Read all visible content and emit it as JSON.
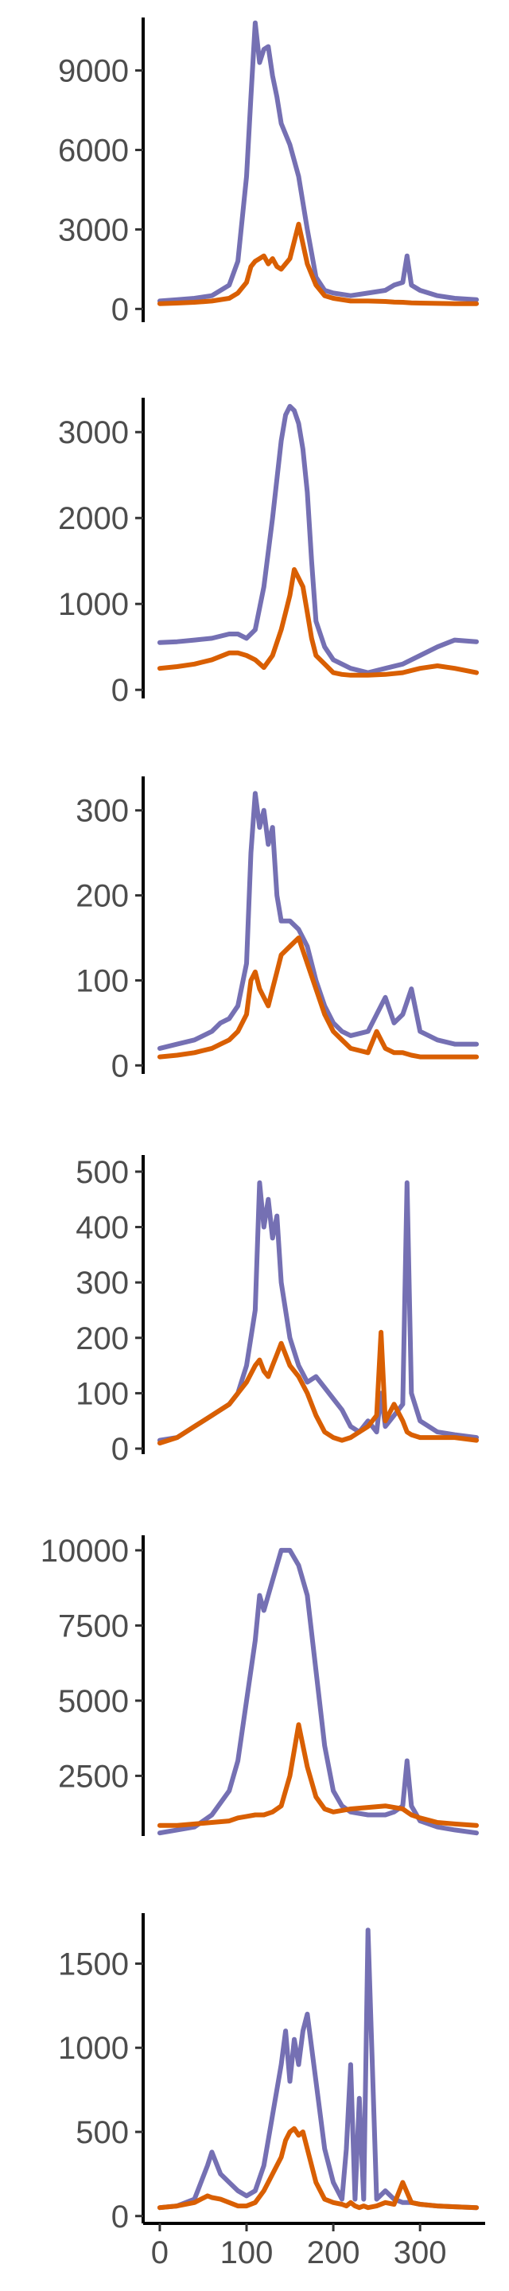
{
  "chart_data": [
    {
      "type": "line",
      "xlim": [
        -10,
        375
      ],
      "ylim": [
        -500,
        11000
      ],
      "yticks": [
        0,
        3000,
        6000,
        9000
      ],
      "x": [
        0,
        20,
        40,
        60,
        80,
        90,
        100,
        105,
        110,
        115,
        120,
        125,
        130,
        135,
        140,
        150,
        160,
        170,
        180,
        190,
        200,
        220,
        240,
        260,
        270,
        280,
        285,
        290,
        300,
        320,
        340,
        365
      ],
      "series": [
        {
          "color": "#7570b3",
          "values": [
            300,
            350,
            400,
            500,
            900,
            1800,
            5000,
            8000,
            10800,
            9300,
            9800,
            9900,
            8800,
            8000,
            7000,
            6200,
            5000,
            3000,
            1200,
            700,
            600,
            500,
            600,
            700,
            900,
            1000,
            2000,
            900,
            700,
            500,
            400,
            350
          ]
        },
        {
          "color": "#d95f02",
          "values": [
            200,
            220,
            250,
            300,
            400,
            600,
            1000,
            1600,
            1800,
            1900,
            2000,
            1700,
            1900,
            1600,
            1500,
            1900,
            3200,
            1700,
            900,
            500,
            400,
            300,
            300,
            280,
            260,
            250,
            240,
            230,
            220,
            210,
            200,
            200
          ]
        }
      ]
    },
    {
      "type": "line",
      "xlim": [
        -10,
        375
      ],
      "ylim": [
        -100,
        3400
      ],
      "yticks": [
        0,
        1000,
        2000,
        3000
      ],
      "x": [
        0,
        20,
        40,
        60,
        80,
        90,
        100,
        110,
        120,
        130,
        140,
        145,
        150,
        155,
        160,
        165,
        170,
        175,
        180,
        190,
        200,
        210,
        220,
        240,
        260,
        280,
        300,
        320,
        340,
        365
      ],
      "series": [
        {
          "color": "#7570b3",
          "values": [
            550,
            560,
            580,
            600,
            650,
            650,
            600,
            700,
            1200,
            2000,
            2900,
            3200,
            3300,
            3250,
            3100,
            2800,
            2300,
            1500,
            800,
            500,
            350,
            300,
            250,
            200,
            250,
            300,
            400,
            500,
            580,
            560
          ]
        },
        {
          "color": "#d95f02",
          "values": [
            250,
            270,
            300,
            350,
            430,
            430,
            400,
            350,
            260,
            400,
            700,
            900,
            1100,
            1400,
            1300,
            1200,
            900,
            600,
            400,
            300,
            200,
            180,
            170,
            170,
            180,
            200,
            250,
            280,
            250,
            200
          ]
        }
      ]
    },
    {
      "type": "line",
      "xlim": [
        -10,
        375
      ],
      "ylim": [
        -10,
        340
      ],
      "yticks": [
        0,
        100,
        200,
        300
      ],
      "x": [
        0,
        20,
        40,
        60,
        70,
        80,
        90,
        100,
        105,
        110,
        115,
        120,
        125,
        130,
        135,
        140,
        150,
        160,
        170,
        180,
        190,
        200,
        210,
        220,
        240,
        250,
        260,
        270,
        280,
        290,
        300,
        320,
        340,
        365
      ],
      "series": [
        {
          "color": "#7570b3",
          "values": [
            20,
            25,
            30,
            40,
            50,
            55,
            70,
            120,
            250,
            320,
            280,
            300,
            260,
            280,
            200,
            170,
            170,
            160,
            140,
            100,
            70,
            50,
            40,
            35,
            40,
            60,
            80,
            50,
            60,
            90,
            40,
            30,
            25,
            25
          ]
        },
        {
          "color": "#d95f02",
          "values": [
            10,
            12,
            15,
            20,
            25,
            30,
            40,
            60,
            100,
            110,
            90,
            80,
            70,
            90,
            110,
            130,
            140,
            150,
            120,
            90,
            60,
            40,
            30,
            20,
            15,
            40,
            20,
            15,
            15,
            12,
            10,
            10,
            10,
            10
          ]
        }
      ]
    },
    {
      "type": "line",
      "xlim": [
        -10,
        375
      ],
      "ylim": [
        -10,
        530
      ],
      "yticks": [
        0,
        100,
        200,
        300,
        400,
        500
      ],
      "x": [
        0,
        20,
        40,
        60,
        80,
        90,
        100,
        110,
        115,
        120,
        125,
        130,
        135,
        140,
        150,
        160,
        170,
        180,
        190,
        200,
        210,
        220,
        230,
        240,
        250,
        255,
        260,
        270,
        280,
        285,
        290,
        300,
        320,
        340,
        365
      ],
      "series": [
        {
          "color": "#7570b3",
          "values": [
            15,
            20,
            40,
            60,
            80,
            100,
            150,
            250,
            480,
            400,
            450,
            380,
            420,
            300,
            200,
            150,
            120,
            130,
            110,
            90,
            70,
            40,
            30,
            50,
            30,
            100,
            40,
            60,
            80,
            480,
            100,
            50,
            30,
            25,
            20
          ]
        },
        {
          "color": "#d95f02",
          "values": [
            10,
            20,
            40,
            60,
            80,
            100,
            120,
            150,
            160,
            140,
            130,
            150,
            170,
            190,
            150,
            130,
            100,
            60,
            30,
            20,
            15,
            20,
            30,
            40,
            60,
            210,
            50,
            80,
            50,
            30,
            25,
            20,
            20,
            20,
            15
          ]
        }
      ]
    },
    {
      "type": "line",
      "xlim": [
        -10,
        375
      ],
      "ylim": [
        500,
        10500
      ],
      "yticks": [
        2500,
        5000,
        7500,
        10000
      ],
      "x": [
        0,
        20,
        40,
        60,
        80,
        90,
        100,
        110,
        115,
        120,
        130,
        140,
        150,
        160,
        170,
        180,
        190,
        200,
        210,
        220,
        240,
        260,
        270,
        280,
        285,
        290,
        300,
        320,
        340,
        365
      ],
      "series": [
        {
          "color": "#7570b3",
          "values": [
            600,
            700,
            800,
            1200,
            2000,
            3000,
            5000,
            7000,
            8500,
            8000,
            9000,
            10000,
            10000,
            9500,
            8500,
            6000,
            3500,
            2000,
            1500,
            1300,
            1200,
            1200,
            1300,
            1500,
            3000,
            1500,
            1000,
            800,
            700,
            600
          ]
        },
        {
          "color": "#d95f02",
          "values": [
            850,
            850,
            900,
            950,
            1000,
            1100,
            1150,
            1200,
            1200,
            1200,
            1300,
            1500,
            2500,
            4200,
            2800,
            1800,
            1400,
            1300,
            1350,
            1400,
            1450,
            1500,
            1450,
            1400,
            1300,
            1200,
            1100,
            950,
            900,
            850
          ]
        }
      ]
    },
    {
      "type": "line",
      "xlim": [
        -10,
        375
      ],
      "ylim": [
        -20,
        1800
      ],
      "yticks": [
        0,
        500,
        1000,
        1500
      ],
      "x": [
        0,
        20,
        40,
        55,
        60,
        70,
        80,
        90,
        100,
        110,
        120,
        130,
        140,
        145,
        150,
        155,
        160,
        165,
        170,
        180,
        190,
        200,
        210,
        215,
        220,
        225,
        230,
        235,
        240,
        250,
        260,
        270,
        280,
        290,
        300,
        320,
        340,
        365
      ],
      "series": [
        {
          "color": "#7570b3",
          "values": [
            50,
            60,
            100,
            300,
            380,
            250,
            200,
            150,
            120,
            150,
            300,
            600,
            900,
            1100,
            800,
            1050,
            900,
            1100,
            1200,
            800,
            400,
            200,
            100,
            400,
            900,
            100,
            700,
            100,
            1700,
            100,
            150,
            100,
            80,
            80,
            70,
            60,
            55,
            50
          ]
        },
        {
          "color": "#d95f02",
          "values": [
            50,
            60,
            80,
            120,
            110,
            100,
            80,
            60,
            60,
            80,
            150,
            250,
            350,
            450,
            500,
            520,
            480,
            500,
            400,
            200,
            100,
            80,
            70,
            60,
            80,
            60,
            50,
            60,
            50,
            60,
            80,
            70,
            200,
            80,
            70,
            60,
            55,
            50
          ]
        }
      ]
    }
  ],
  "x_axis": {
    "ticks": [
      0,
      100,
      200,
      300
    ]
  }
}
